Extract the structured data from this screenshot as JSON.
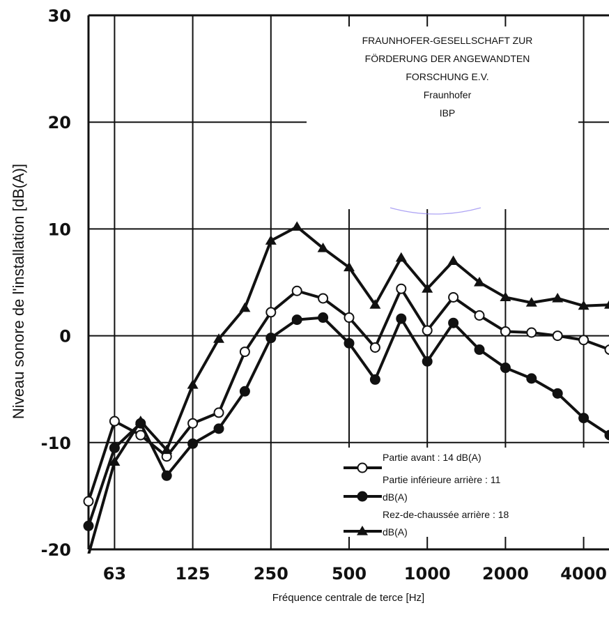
{
  "chart_data": {
    "type": "line",
    "xlabel": "Fréquence centrale de terce [Hz]",
    "ylabel": "Niveau sonore de l'installation [dB(A)]",
    "ylim": [
      -20,
      30
    ],
    "yticks": [
      30,
      20,
      10,
      0,
      -10,
      -20
    ],
    "grid": true,
    "legend_position": "bottom-right",
    "categories": [
      "50",
      "63",
      "80",
      "100",
      "125",
      "160",
      "200",
      "250",
      "315",
      "400",
      "500",
      "630",
      "800",
      "1000",
      "1250",
      "1600",
      "2000",
      "2500",
      "3150",
      "4000",
      "5000"
    ],
    "x_tick_labels": [
      "63",
      "125",
      "250",
      "500",
      "1000",
      "2000",
      "4000"
    ],
    "series": [
      {
        "name": "Partie avant : 14 dB(A)",
        "legend_line1": "Partie avant : 14 dB(A)",
        "legend_line2": "",
        "marker": "open-circle",
        "values": [
          -15.5,
          -8,
          -9.3,
          -11.3,
          -8.2,
          -7.2,
          -1.5,
          2.2,
          4.2,
          3.5,
          1.7,
          -1.1,
          4.4,
          0.5,
          3.6,
          1.9,
          0.4,
          0.3,
          0.0,
          -0.4,
          -1.3
        ]
      },
      {
        "name": "Partie inférieure arrière : 11 dB(A)",
        "legend_line1": "Partie inférieure arrière : 11",
        "legend_line2": "dB(A)",
        "marker": "filled-circle",
        "values": [
          -17.8,
          -10.5,
          -8.2,
          -13.1,
          -10.1,
          -8.7,
          -5.2,
          -0.2,
          1.5,
          1.7,
          -0.7,
          -4.1,
          1.6,
          -2.4,
          1.2,
          -1.3,
          -3.0,
          -4.0,
          -5.4,
          -7.7,
          -9.3
        ]
      },
      {
        "name": "Rez-de-chaussée arrière : 18 dB(A)",
        "legend_line1": "Rez-de-chaussée arrière : 18",
        "legend_line2": "dB(A)",
        "marker": "filled-triangle",
        "values": [
          -20.5,
          -11.8,
          -8.0,
          -10.7,
          -4.6,
          -0.3,
          2.6,
          8.9,
          10.2,
          8.2,
          6.4,
          2.9,
          7.3,
          4.4,
          7.0,
          5.0,
          3.6,
          3.1,
          3.5,
          2.8,
          2.9
        ]
      }
    ]
  },
  "watermark": {
    "lines": [
      "FRAUNHOFER-GESELLSCHAFT ZUR",
      "FÖRDERUNG DER ANGEWANDTEN",
      "FORSCHUNG E.V.",
      "Fraunhofer",
      "IBP"
    ]
  },
  "colors": {
    "line": "#111111",
    "grid": "#111111",
    "background": "#ffffff",
    "accent_arc": "#8a7cf0"
  }
}
